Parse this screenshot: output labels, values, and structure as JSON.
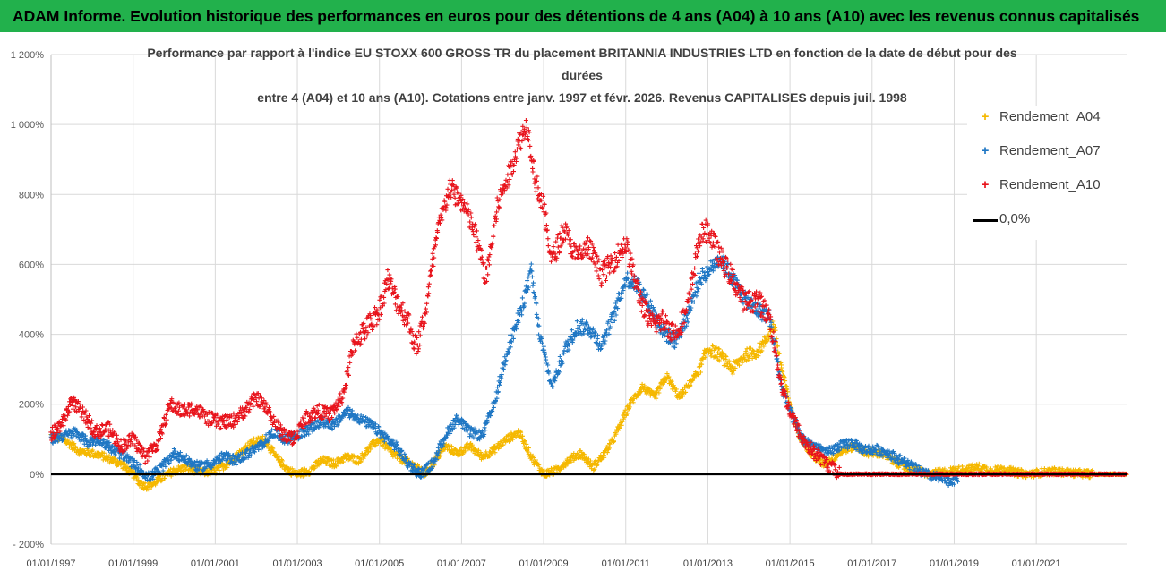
{
  "banner": {
    "text": "ADAM Informe. Evolution historique des performances en euros pour des détentions de 4 ans (A04) à 10 ans (A10) avec les revenus connus capitalisés"
  },
  "colors": {
    "banner_bg": "#22b14c",
    "a04": "#f5b800",
    "a07": "#1f77c4",
    "a10": "#e8141c",
    "zero": "#000000"
  },
  "chart_data": {
    "type": "scatter",
    "title_lines": [
      "Performance par rapport à l'indice EU STOXX 600 GROSS TR  du placement BRITANNIA INDUSTRIES LTD en fonction de la date de début pour des",
      "durées",
      "entre 4 (A04) et 10 ans (A10).  Cotations entre janv. 1997 et févr. 2026. Revenus CAPITALISES depuis juil. 1998"
    ],
    "y_ticks": [
      "1 200%",
      "1 000%",
      "800%",
      "600%",
      "400%",
      "200%",
      "0%",
      "- 200%"
    ],
    "y_tick_values": [
      1200,
      1000,
      800,
      600,
      400,
      200,
      0,
      -200
    ],
    "ylim": [
      -200,
      1200
    ],
    "x_ticks": [
      "01/01/1997",
      "01/01/1999",
      "01/01/2001",
      "01/01/2003",
      "01/01/2005",
      "01/01/2007",
      "01/01/2009",
      "01/01/2011",
      "01/01/2013",
      "01/01/2015",
      "01/01/2017",
      "01/01/2019",
      "01/01/2021"
    ],
    "x_tick_years": [
      1997,
      1999,
      2001,
      2003,
      2005,
      2007,
      2009,
      2011,
      2013,
      2015,
      2017,
      2019,
      2021
    ],
    "xlim": [
      1997,
      2023.2
    ],
    "legend": [
      {
        "key": "a04",
        "label": "Rendement_A04",
        "marker": "+"
      },
      {
        "key": "a07",
        "label": "Rendement_A07",
        "marker": "+"
      },
      {
        "key": "a10",
        "label": "Rendement_A10",
        "marker": "+"
      },
      {
        "key": "zero",
        "label": "0,0%",
        "marker": "line"
      }
    ],
    "series": [
      {
        "name": "Rendement_A04",
        "key": "a04",
        "points": [
          [
            1997.0,
            110
          ],
          [
            1997.3,
            100
          ],
          [
            1997.7,
            65
          ],
          [
            1998.0,
            60
          ],
          [
            1998.3,
            50
          ],
          [
            1998.7,
            30
          ],
          [
            1999.0,
            0
          ],
          [
            1999.2,
            -30
          ],
          [
            1999.4,
            -35
          ],
          [
            1999.7,
            -10
          ],
          [
            2000.0,
            10
          ],
          [
            2000.3,
            20
          ],
          [
            2000.7,
            5
          ],
          [
            2001.0,
            10
          ],
          [
            2001.3,
            30
          ],
          [
            2001.6,
            60
          ],
          [
            2001.9,
            90
          ],
          [
            2002.2,
            100
          ],
          [
            2002.5,
            45
          ],
          [
            2002.8,
            10
          ],
          [
            2003.0,
            0
          ],
          [
            2003.3,
            10
          ],
          [
            2003.6,
            40
          ],
          [
            2003.9,
            30
          ],
          [
            2004.2,
            50
          ],
          [
            2004.5,
            40
          ],
          [
            2004.8,
            80
          ],
          [
            2005.0,
            100
          ],
          [
            2005.3,
            60
          ],
          [
            2005.6,
            40
          ],
          [
            2005.9,
            20
          ],
          [
            2006.1,
            0
          ],
          [
            2006.3,
            30
          ],
          [
            2006.6,
            80
          ],
          [
            2006.9,
            60
          ],
          [
            2007.2,
            80
          ],
          [
            2007.5,
            50
          ],
          [
            2007.8,
            70
          ],
          [
            2008.1,
            100
          ],
          [
            2008.4,
            120
          ],
          [
            2008.7,
            50
          ],
          [
            2009.0,
            0
          ],
          [
            2009.3,
            10
          ],
          [
            2009.6,
            40
          ],
          [
            2009.9,
            60
          ],
          [
            2010.2,
            20
          ],
          [
            2010.5,
            60
          ],
          [
            2010.7,
            100
          ],
          [
            2010.9,
            150
          ],
          [
            2011.1,
            200
          ],
          [
            2011.4,
            250
          ],
          [
            2011.7,
            220
          ],
          [
            2012.0,
            280
          ],
          [
            2012.3,
            220
          ],
          [
            2012.5,
            250
          ],
          [
            2012.8,
            300
          ],
          [
            2013.0,
            360
          ],
          [
            2013.3,
            340
          ],
          [
            2013.6,
            300
          ],
          [
            2013.9,
            340
          ],
          [
            2014.2,
            350
          ],
          [
            2014.4,
            380
          ],
          [
            2014.6,
            430
          ],
          [
            2014.8,
            300
          ],
          [
            2015.0,
            200
          ],
          [
            2015.2,
            120
          ],
          [
            2015.5,
            60
          ],
          [
            2015.8,
            30
          ],
          [
            2016.0,
            40
          ],
          [
            2016.3,
            70
          ],
          [
            2016.6,
            80
          ],
          [
            2016.9,
            60
          ],
          [
            2017.2,
            60
          ],
          [
            2017.5,
            40
          ],
          [
            2017.8,
            20
          ],
          [
            2018.1,
            10
          ],
          [
            2018.4,
            0
          ],
          [
            2018.7,
            5
          ],
          [
            2019.0,
            10
          ],
          [
            2019.3,
            15
          ],
          [
            2019.6,
            20
          ],
          [
            2019.9,
            10
          ],
          [
            2020.2,
            15
          ],
          [
            2020.5,
            5
          ],
          [
            2020.8,
            0
          ],
          [
            2021.1,
            5
          ],
          [
            2021.4,
            8
          ],
          [
            2021.7,
            5
          ],
          [
            2022.0,
            3
          ],
          [
            2022.4,
            0
          ],
          [
            2022.8,
            0
          ],
          [
            2023.2,
            0
          ]
        ]
      },
      {
        "name": "Rendement_A07",
        "key": "a07",
        "points": [
          [
            1997.0,
            100
          ],
          [
            1997.3,
            110
          ],
          [
            1997.6,
            120
          ],
          [
            1997.9,
            90
          ],
          [
            1998.2,
            100
          ],
          [
            1998.5,
            70
          ],
          [
            1998.8,
            50
          ],
          [
            1999.1,
            20
          ],
          [
            1999.4,
            -10
          ],
          [
            1999.7,
            20
          ],
          [
            2000.0,
            60
          ],
          [
            2000.3,
            40
          ],
          [
            2000.6,
            20
          ],
          [
            2000.9,
            30
          ],
          [
            2001.2,
            50
          ],
          [
            2001.5,
            40
          ],
          [
            2001.8,
            60
          ],
          [
            2002.1,
            80
          ],
          [
            2002.4,
            120
          ],
          [
            2002.7,
            100
          ],
          [
            2003.0,
            110
          ],
          [
            2003.3,
            130
          ],
          [
            2003.6,
            150
          ],
          [
            2003.9,
            140
          ],
          [
            2004.2,
            180
          ],
          [
            2004.5,
            160
          ],
          [
            2004.8,
            140
          ],
          [
            2005.1,
            110
          ],
          [
            2005.4,
            80
          ],
          [
            2005.7,
            30
          ],
          [
            2006.0,
            0
          ],
          [
            2006.3,
            30
          ],
          [
            2006.6,
            110
          ],
          [
            2006.9,
            160
          ],
          [
            2007.2,
            120
          ],
          [
            2007.5,
            110
          ],
          [
            2007.8,
            200
          ],
          [
            2008.1,
            350
          ],
          [
            2008.4,
            450
          ],
          [
            2008.7,
            580
          ],
          [
            2008.9,
            400
          ],
          [
            2009.2,
            250
          ],
          [
            2009.5,
            350
          ],
          [
            2009.8,
            420
          ],
          [
            2010.1,
            420
          ],
          [
            2010.4,
            370
          ],
          [
            2010.7,
            450
          ],
          [
            2011.0,
            560
          ],
          [
            2011.3,
            540
          ],
          [
            2011.6,
            480
          ],
          [
            2011.9,
            410
          ],
          [
            2012.2,
            380
          ],
          [
            2012.5,
            450
          ],
          [
            2012.8,
            560
          ],
          [
            2013.0,
            580
          ],
          [
            2013.3,
            620
          ],
          [
            2013.6,
            560
          ],
          [
            2013.9,
            500
          ],
          [
            2014.2,
            470
          ],
          [
            2014.5,
            450
          ],
          [
            2014.8,
            250
          ],
          [
            2015.0,
            180
          ],
          [
            2015.3,
            100
          ],
          [
            2015.6,
            80
          ],
          [
            2015.9,
            60
          ],
          [
            2016.2,
            80
          ],
          [
            2016.5,
            90
          ],
          [
            2016.8,
            70
          ],
          [
            2017.1,
            70
          ],
          [
            2017.4,
            60
          ],
          [
            2017.7,
            40
          ],
          [
            2018.0,
            20
          ],
          [
            2018.3,
            0
          ],
          [
            2018.6,
            -10
          ],
          [
            2018.9,
            -20
          ],
          [
            2019.1,
            -10
          ]
        ]
      },
      {
        "name": "Rendement_A10",
        "key": "a10",
        "points": [
          [
            1997.0,
            110
          ],
          [
            1997.3,
            150
          ],
          [
            1997.5,
            210
          ],
          [
            1997.8,
            170
          ],
          [
            1998.1,
            120
          ],
          [
            1998.4,
            130
          ],
          [
            1998.7,
            80
          ],
          [
            1999.0,
            100
          ],
          [
            1999.3,
            50
          ],
          [
            1999.6,
            90
          ],
          [
            1999.9,
            200
          ],
          [
            2000.2,
            180
          ],
          [
            2000.5,
            190
          ],
          [
            2000.8,
            160
          ],
          [
            2001.1,
            150
          ],
          [
            2001.4,
            150
          ],
          [
            2001.7,
            180
          ],
          [
            2002.0,
            220
          ],
          [
            2002.3,
            180
          ],
          [
            2002.6,
            120
          ],
          [
            2002.9,
            100
          ],
          [
            2003.2,
            160
          ],
          [
            2003.5,
            180
          ],
          [
            2003.8,
            170
          ],
          [
            2004.1,
            220
          ],
          [
            2004.4,
            380
          ],
          [
            2004.7,
            420
          ],
          [
            2005.0,
            470
          ],
          [
            2005.2,
            560
          ],
          [
            2005.4,
            500
          ],
          [
            2005.7,
            440
          ],
          [
            2005.9,
            360
          ],
          [
            2006.1,
            450
          ],
          [
            2006.4,
            680
          ],
          [
            2006.7,
            820
          ],
          [
            2007.0,
            780
          ],
          [
            2007.3,
            700
          ],
          [
            2007.6,
            560
          ],
          [
            2007.9,
            780
          ],
          [
            2008.2,
            870
          ],
          [
            2008.4,
            950
          ],
          [
            2008.6,
            1000
          ],
          [
            2008.8,
            840
          ],
          [
            2009.0,
            760
          ],
          [
            2009.2,
            610
          ],
          [
            2009.5,
            700
          ],
          [
            2009.8,
            620
          ],
          [
            2010.1,
            650
          ],
          [
            2010.4,
            570
          ],
          [
            2010.7,
            610
          ],
          [
            2011.0,
            660
          ],
          [
            2011.3,
            520
          ],
          [
            2011.6,
            430
          ],
          [
            2011.9,
            440
          ],
          [
            2012.2,
            400
          ],
          [
            2012.5,
            470
          ],
          [
            2012.8,
            680
          ],
          [
            2013.0,
            700
          ],
          [
            2013.3,
            620
          ],
          [
            2013.6,
            560
          ],
          [
            2013.9,
            490
          ],
          [
            2014.2,
            500
          ],
          [
            2014.5,
            450
          ],
          [
            2014.8,
            250
          ],
          [
            2015.0,
            180
          ],
          [
            2015.3,
            100
          ],
          [
            2015.6,
            60
          ],
          [
            2015.9,
            30
          ],
          [
            2016.2,
            0
          ],
          [
            2016.6,
            0
          ],
          [
            2017.0,
            0
          ],
          [
            2017.5,
            0
          ],
          [
            2018.0,
            0
          ],
          [
            2018.5,
            0
          ],
          [
            2019.0,
            0
          ],
          [
            2019.5,
            0
          ],
          [
            2020.0,
            0
          ],
          [
            2020.5,
            0
          ],
          [
            2021.0,
            0
          ],
          [
            2021.5,
            0
          ],
          [
            2022.0,
            0
          ],
          [
            2022.5,
            0
          ],
          [
            2023.2,
            0
          ]
        ]
      }
    ],
    "zero_line": {
      "label": "0,0%",
      "value": 0
    }
  }
}
